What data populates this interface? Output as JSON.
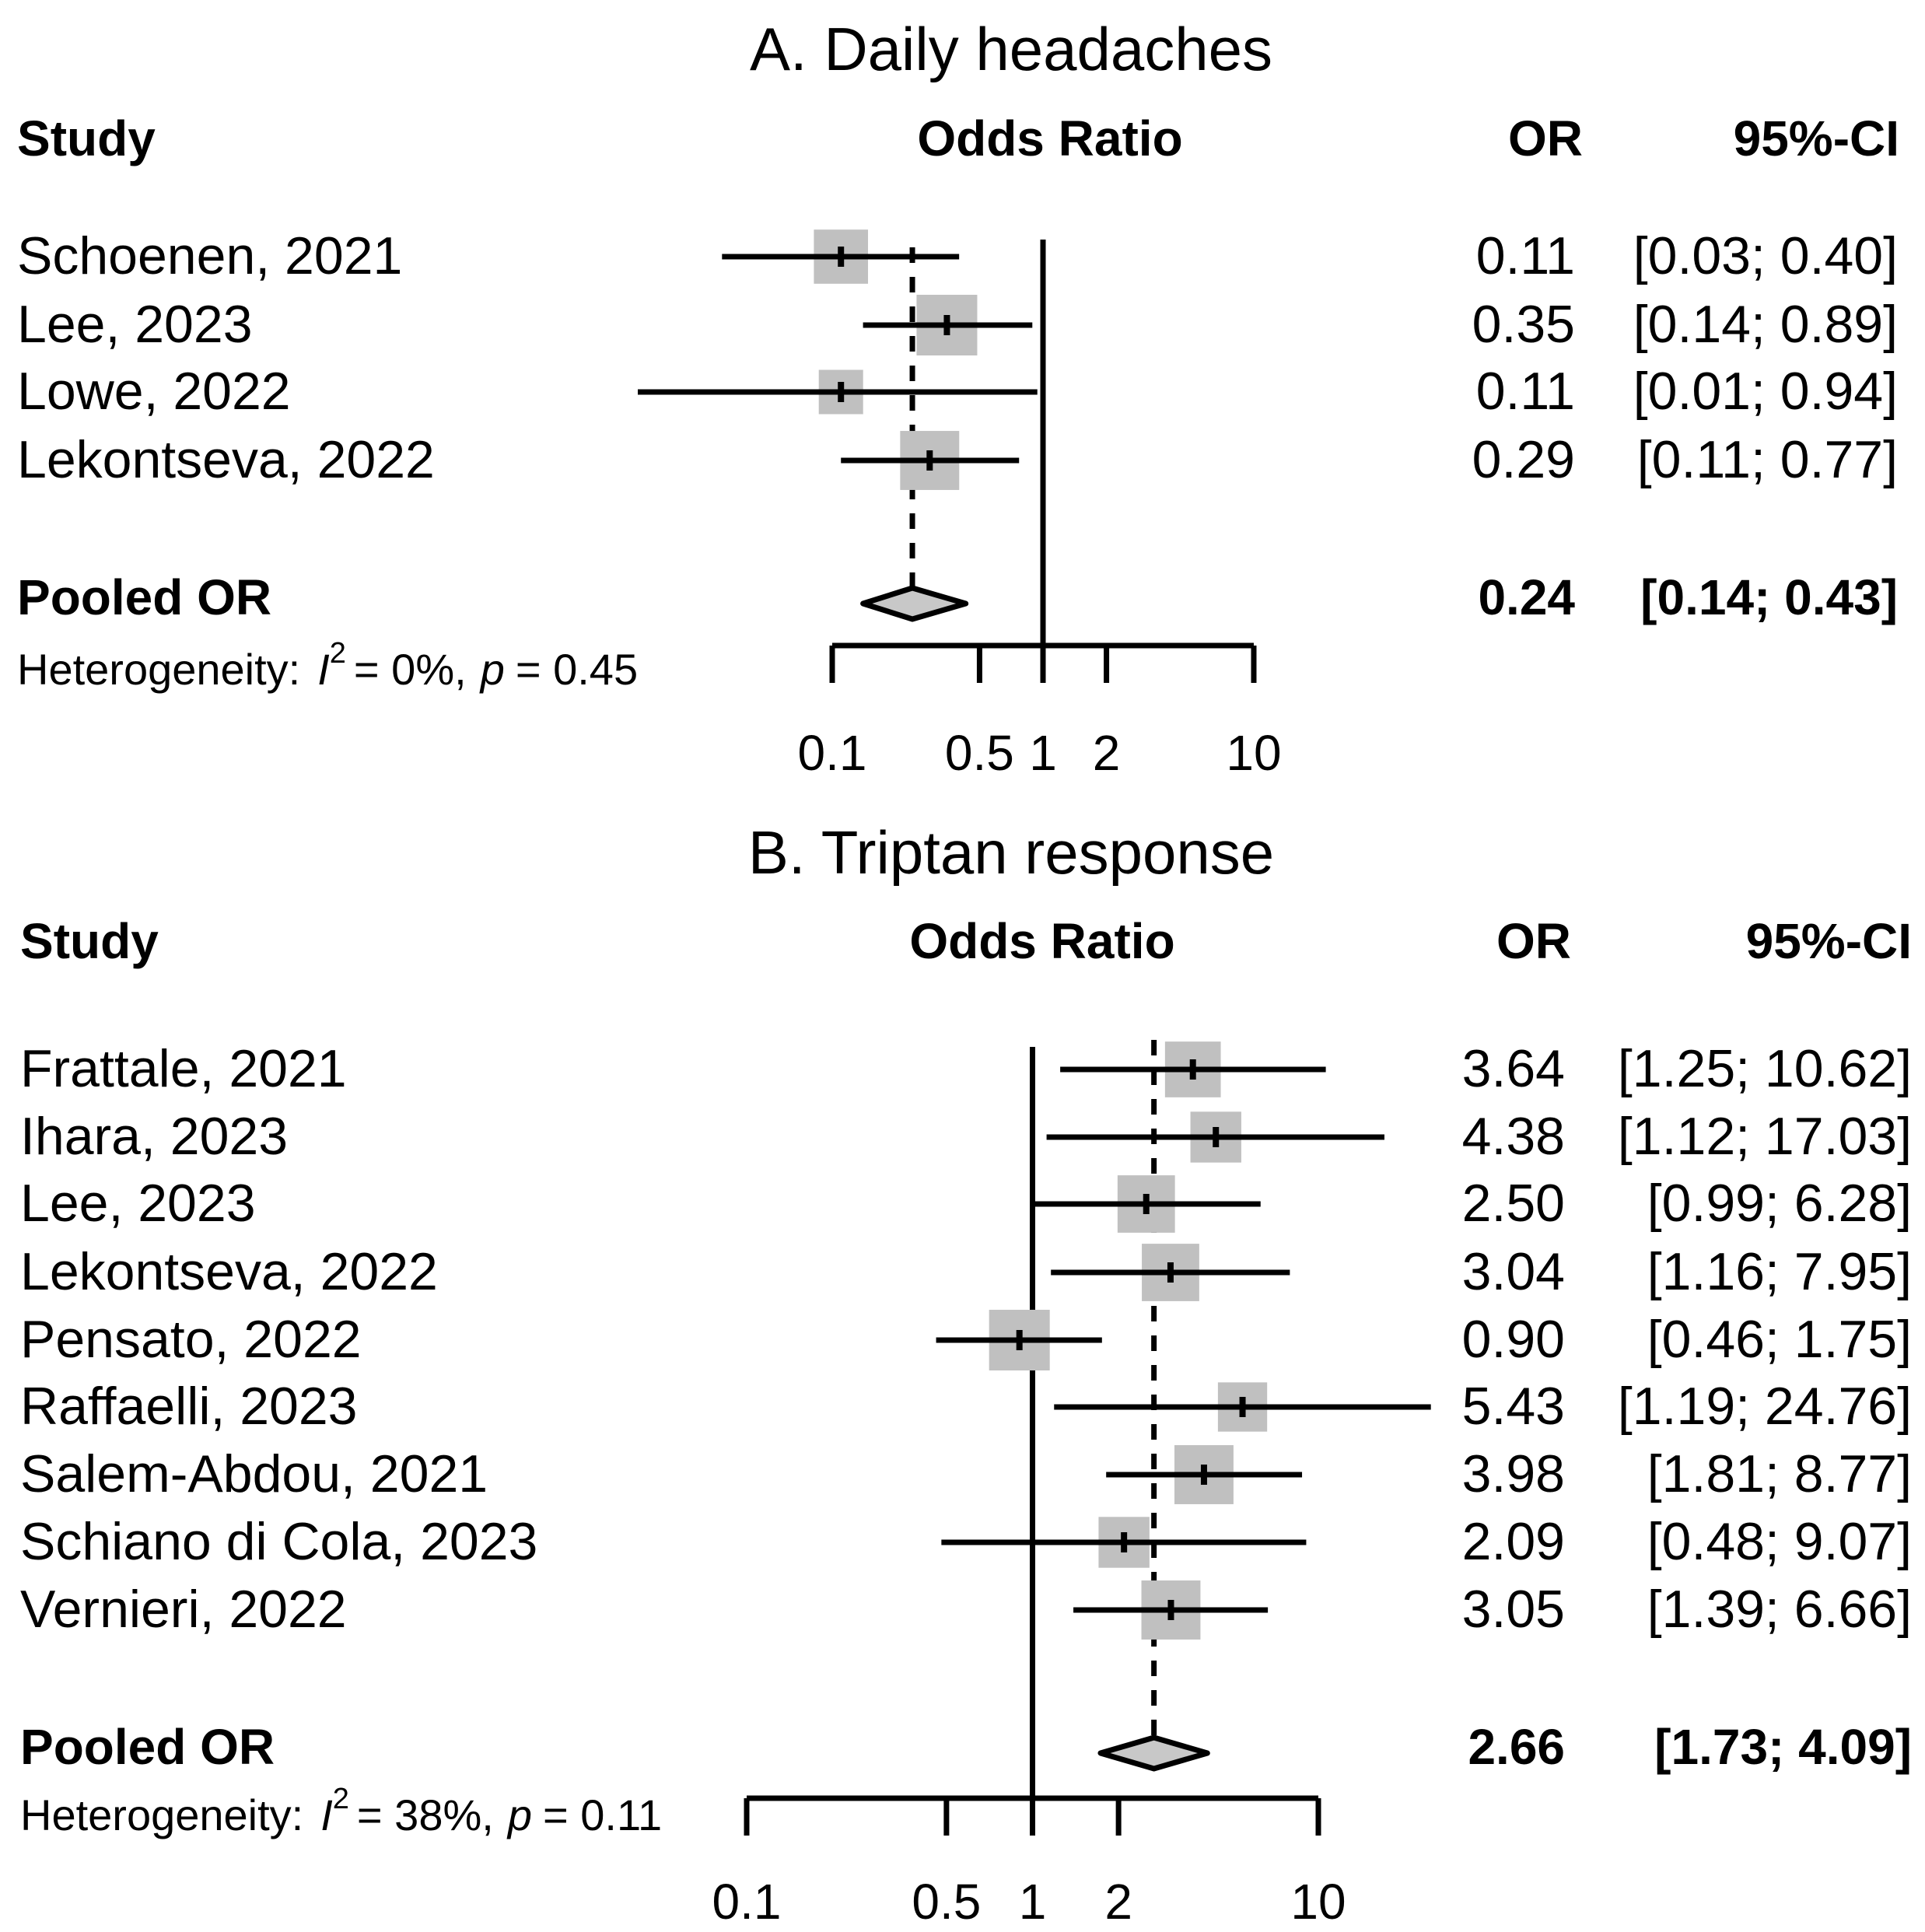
{
  "colors": {
    "box": "#c0c0c0",
    "diamond": "#c8c8c8",
    "ink": "#000000"
  },
  "chart_data": [
    {
      "type": "forest",
      "title": "A. Daily headaches",
      "headers": {
        "study": "Study",
        "odds_ratio": "Odds Ratio",
        "or": "OR",
        "ci": "95%-CI"
      },
      "xscale": "log",
      "xlim": [
        0.1,
        10
      ],
      "ticks": [
        0.1,
        0.5,
        1,
        2,
        10
      ],
      "tick_labels": [
        "0.1",
        "0.5",
        "1",
        "2",
        "10"
      ],
      "null_value": 1,
      "studies": [
        {
          "label": "Schoenen, 2021",
          "or": 0.11,
          "lo": 0.03,
          "hi": 0.4,
          "or_text": "0.11",
          "ci_text": "[0.03; 0.40]",
          "weight": 0.8
        },
        {
          "label": "Lee, 2023",
          "or": 0.35,
          "lo": 0.14,
          "hi": 0.89,
          "or_text": "0.35",
          "ci_text": "[0.14; 0.89]",
          "weight": 1.0
        },
        {
          "label": "Lowe, 2022",
          "or": 0.11,
          "lo": 0.01,
          "hi": 0.94,
          "or_text": "0.11",
          "ci_text": "[0.01; 0.94]",
          "weight": 0.5
        },
        {
          "label": "Lekontseva, 2022",
          "or": 0.29,
          "lo": 0.11,
          "hi": 0.77,
          "or_text": "0.29",
          "ci_text": "[0.11; 0.77]",
          "weight": 0.95
        }
      ],
      "pooled": {
        "label": "Pooled OR",
        "or": 0.24,
        "lo": 0.14,
        "hi": 0.43,
        "or_text": "0.24",
        "ci_text": "[0.14; 0.43]"
      },
      "heterogeneity": {
        "prefix": "Heterogeneity:",
        "i2_symbol": "I",
        "i2_exp": "2",
        "i2_value": "= 0%,",
        "p_symbol": "p",
        "p_value": "= 0.45"
      }
    },
    {
      "type": "forest",
      "title": "B. Triptan response",
      "headers": {
        "study": "Study",
        "odds_ratio": "Odds Ratio",
        "or": "OR",
        "ci": "95%-CI"
      },
      "xscale": "log",
      "xlim": [
        0.1,
        10
      ],
      "ticks": [
        0.1,
        0.5,
        1,
        2,
        10
      ],
      "tick_labels": [
        "0.1",
        "0.5",
        "1",
        "2",
        "10"
      ],
      "null_value": 1,
      "studies": [
        {
          "label": "Frattale, 2021",
          "or": 3.64,
          "lo": 1.25,
          "hi": 10.62,
          "or_text": "3.64",
          "ci_text": "[1.25; 10.62]",
          "weight": 0.85
        },
        {
          "label": "Ihara, 2023",
          "or": 4.38,
          "lo": 1.12,
          "hi": 17.03,
          "or_text": "4.38",
          "ci_text": "[1.12; 17.03]",
          "weight": 0.7
        },
        {
          "label": "Lee, 2023",
          "or": 2.5,
          "lo": 0.99,
          "hi": 6.28,
          "or_text": "2.50",
          "ci_text": "[0.99;  6.28]",
          "weight": 0.9
        },
        {
          "label": "Lekontseva, 2022",
          "or": 3.04,
          "lo": 1.16,
          "hi": 7.95,
          "or_text": "3.04",
          "ci_text": "[1.16;  7.95]",
          "weight": 0.9
        },
        {
          "label": "Pensato, 2022",
          "or": 0.9,
          "lo": 0.46,
          "hi": 1.75,
          "or_text": "0.90",
          "ci_text": "[0.46;  1.75]",
          "weight": 1.0
        },
        {
          "label": "Raffaelli, 2023",
          "or": 5.43,
          "lo": 1.19,
          "hi": 24.76,
          "or_text": "5.43",
          "ci_text": "[1.19; 24.76]",
          "weight": 0.65
        },
        {
          "label": "Salem-Abdou, 2021",
          "or": 3.98,
          "lo": 1.81,
          "hi": 8.77,
          "or_text": "3.98",
          "ci_text": "[1.81;  8.77]",
          "weight": 0.95
        },
        {
          "label": "Schiano di Cola, 2023",
          "or": 2.09,
          "lo": 0.48,
          "hi": 9.07,
          "or_text": "2.09",
          "ci_text": "[0.48;  9.07]",
          "weight": 0.7
        },
        {
          "label": "Vernieri, 2022",
          "or": 3.05,
          "lo": 1.39,
          "hi": 6.66,
          "or_text": "3.05",
          "ci_text": "[1.39;  6.66]",
          "weight": 0.95
        }
      ],
      "pooled": {
        "label": "Pooled OR",
        "or": 2.66,
        "lo": 1.73,
        "hi": 4.09,
        "or_text": "2.66",
        "ci_text": "[1.73;  4.09]"
      },
      "heterogeneity": {
        "prefix": "Heterogeneity:",
        "i2_symbol": "I",
        "i2_exp": "2",
        "i2_value": "= 38%,",
        "p_symbol": "p",
        "p_value": "= 0.11"
      }
    }
  ]
}
